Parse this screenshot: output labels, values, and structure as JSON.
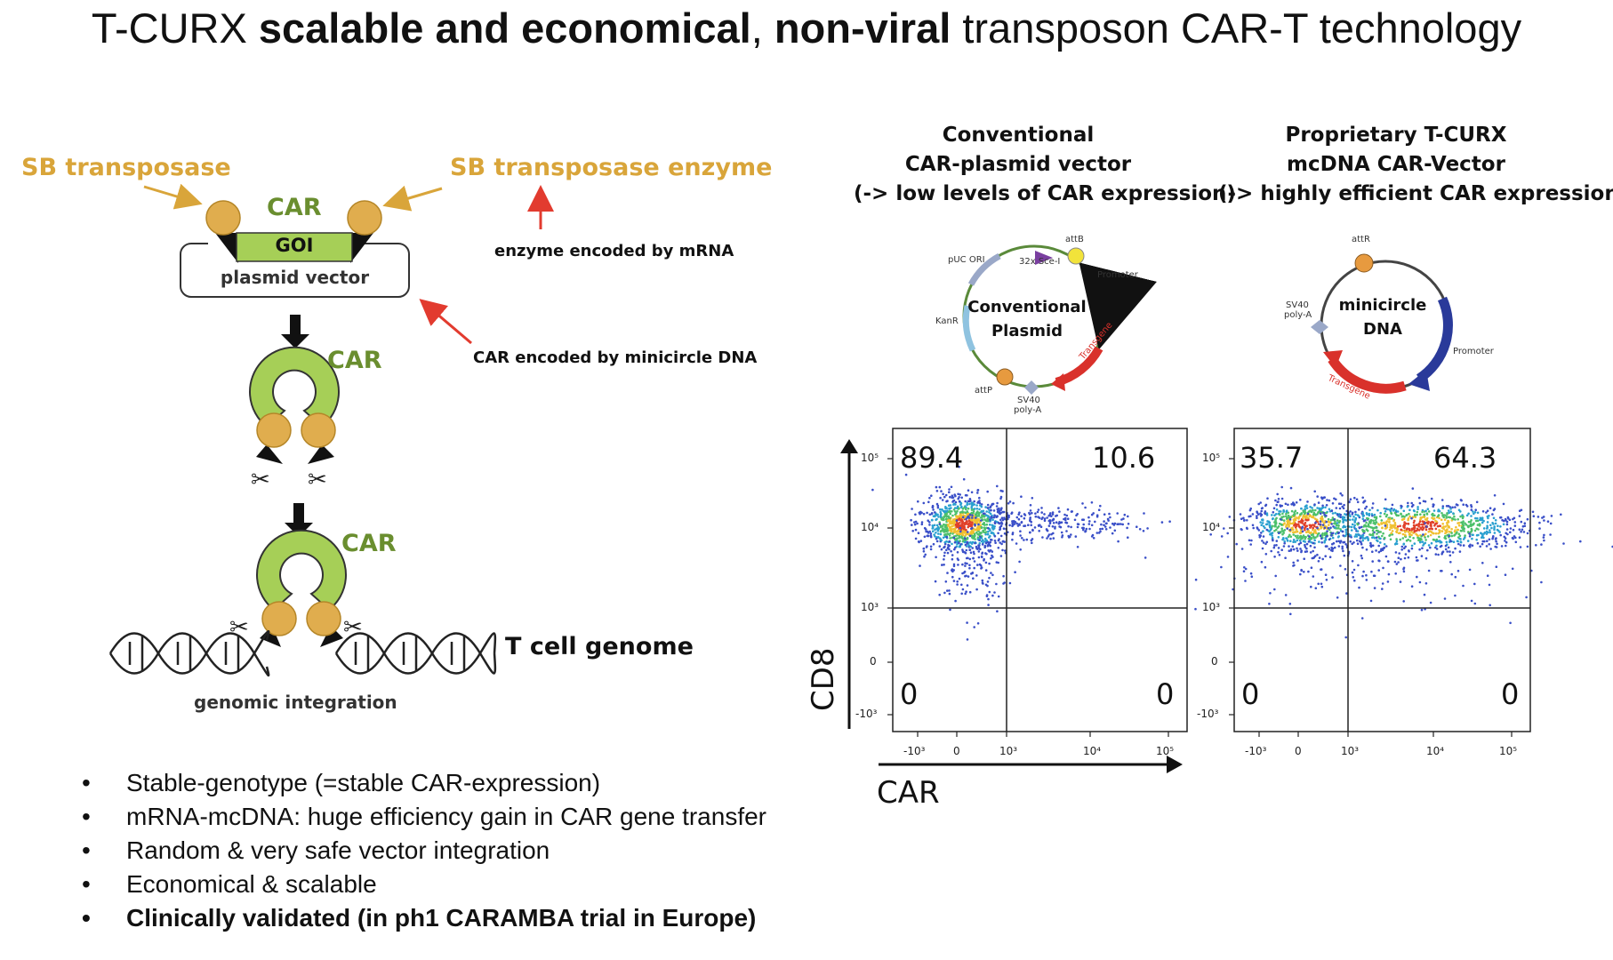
{
  "title": {
    "part1": "T-CURX ",
    "part2": "scalable and economical",
    "part3": ", ",
    "part4": "non-viral",
    "part5": " transposon CAR-T technology"
  },
  "diagram": {
    "sb_transposase": "SB transposase",
    "sb_transposase_enzyme": "SB transposase enzyme",
    "car_top": "CAR",
    "goi": "GOI",
    "plasmid_vector": "plasmid vector",
    "enzyme_note": "enzyme encoded by mRNA",
    "car_note": "CAR encoded by minicircle DNA",
    "car_mid": "CAR",
    "car_bottom": "CAR",
    "t_cell_genome": "T cell genome",
    "genomic_integration": "genomic integration"
  },
  "left_panel": {
    "header_line1": "Conventional",
    "header_line2": "CAR-plasmid vector",
    "header_line3": "(-> low levels of CAR expression)",
    "plasmid_line1": "Conventional",
    "plasmid_line2": "Plasmid",
    "map_labels": {
      "puc": "pUC ORI",
      "sce": "32x Sce-I",
      "attb": "attB",
      "promoter": "Promoter",
      "kanr": "KanR",
      "transgene": "Transgene",
      "attp": "attP",
      "sv40a": "SV40",
      "sv40b": "poly-A"
    }
  },
  "right_panel": {
    "header_line1": "Proprietary T-CURX",
    "header_line2": "mcDNA CAR-Vector",
    "header_line3": "(-> highly efficient CAR expression)",
    "plasmid_line1": "minicircle",
    "plasmid_line2": "DNA",
    "map_labels": {
      "attr": "attR",
      "sv40a": "SV40",
      "sv40b": "poly-A",
      "promoter": "Promoter",
      "transgene": "Transgene"
    }
  },
  "flow_left": {
    "q_ul": "89.4",
    "q_ur": "10.6",
    "q_ll": "0",
    "q_lr": "0"
  },
  "flow_right": {
    "q_ul": "35.7",
    "q_ur": "64.3",
    "q_ll": "0",
    "q_lr": "0"
  },
  "axes": {
    "y_name": "CD8",
    "x_name": "CAR",
    "y_ticks": [
      "10⁵",
      "10⁴",
      "10³",
      "0",
      "-10³"
    ],
    "x_ticks": [
      "-10³",
      "0",
      "10³",
      "10⁴",
      "10⁵"
    ]
  },
  "bullets": [
    "Stable-genotype (=stable CAR-expression)",
    "mRNA-mcDNA: huge efficiency gain in CAR gene transfer",
    "Random & very safe vector integration",
    "Economical & scalable",
    "Clinically validated (in ph1 CARAMBA trial in Europe)"
  ],
  "colors": {
    "gold": "#d9a53a",
    "green": "#6a8e2f",
    "goi_fill": "#a6cf57",
    "red_arrow": "#e23b2f",
    "transgene_red": "#d9312b",
    "promoter_blue": "#2a3a9a"
  }
}
